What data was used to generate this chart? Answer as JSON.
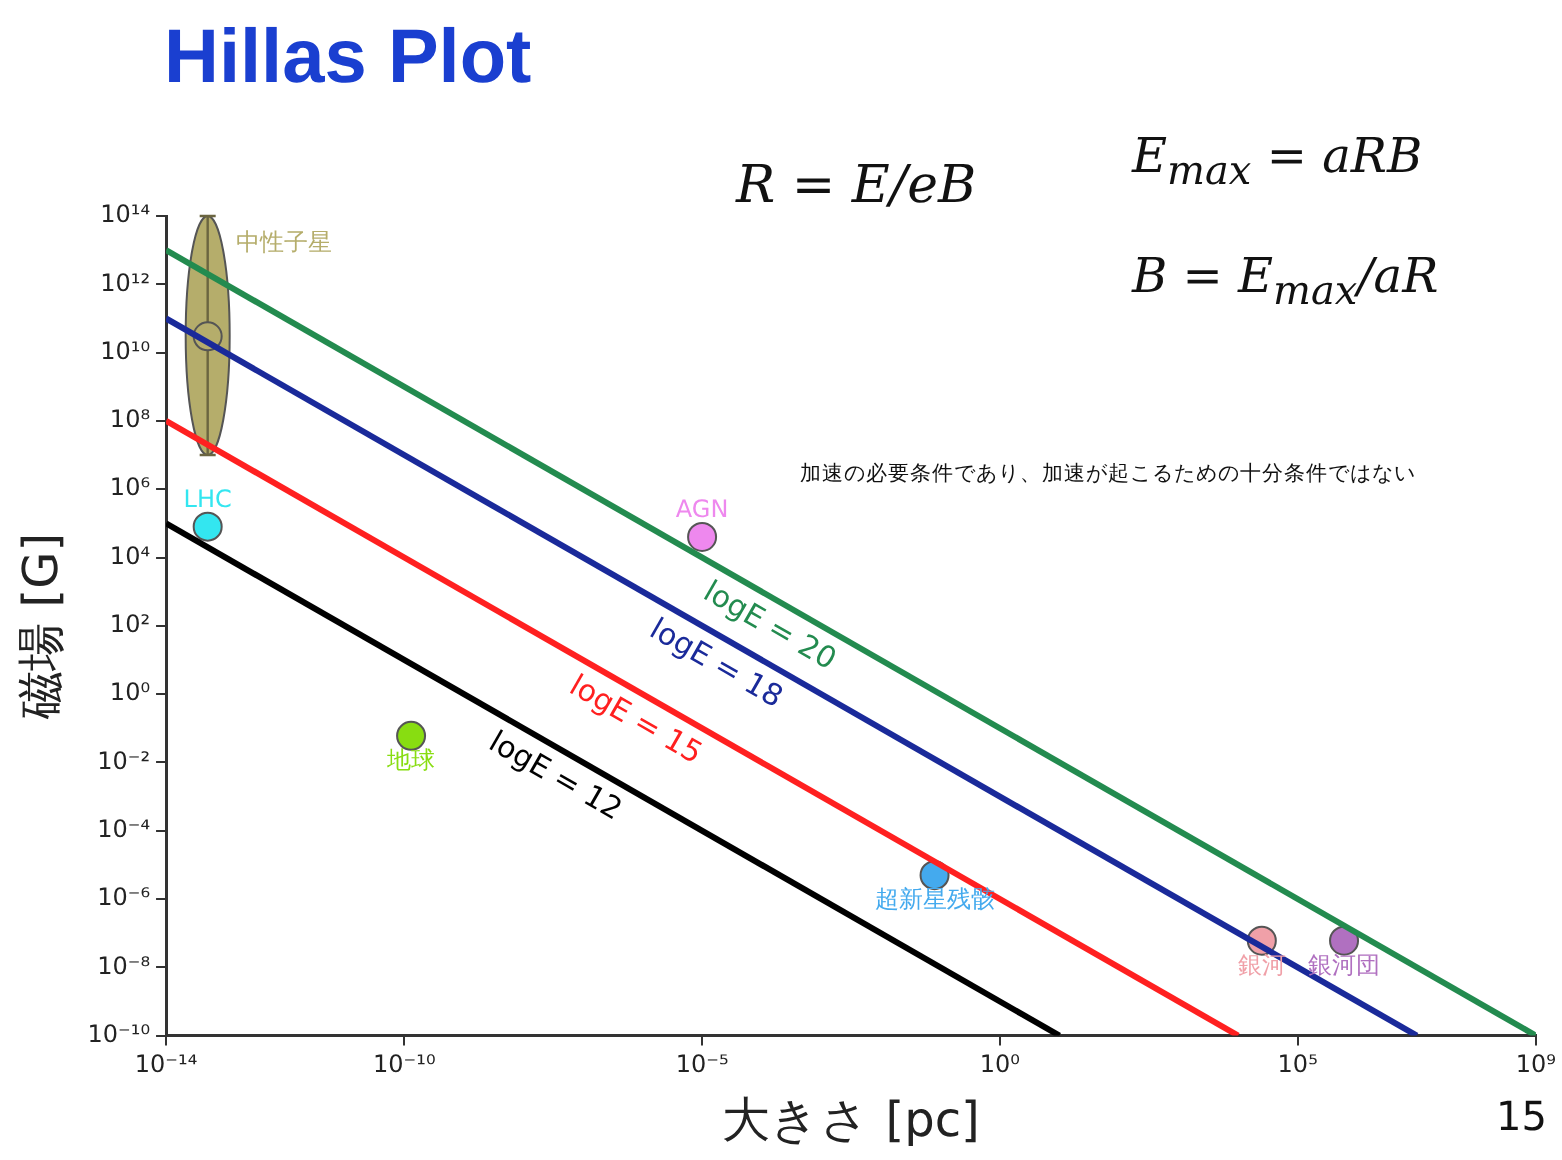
{
  "chart_data": {
    "type": "line",
    "title": "Hillas Plot",
    "xlabel": "大きさ [pc]",
    "ylabel": "磁場 [G]",
    "log": "xy",
    "grid": false,
    "legend": false,
    "line_style": "solid",
    "xlim": [
      1e-14,
      1000000000.0
    ],
    "ylim": [
      1e-10,
      100000000000000.0
    ],
    "xticks": [
      {
        "value": 1e-14,
        "label": "10⁻¹⁴"
      },
      {
        "value": 1e-10,
        "label": "10⁻¹⁰"
      },
      {
        "value": 1e-05,
        "label": "10⁻⁵"
      },
      {
        "value": 1,
        "label": "10⁰"
      },
      {
        "value": 100000.0,
        "label": "10⁵"
      },
      {
        "value": 1000000000.0,
        "label": "10⁹"
      }
    ],
    "yticks": [
      {
        "value": 1e-10,
        "label": "10⁻¹⁰"
      },
      {
        "value": 1e-08,
        "label": "10⁻⁸"
      },
      {
        "value": 1e-06,
        "label": "10⁻⁶"
      },
      {
        "value": 0.0001,
        "label": "10⁻⁴"
      },
      {
        "value": 0.01,
        "label": "10⁻²"
      },
      {
        "value": 1,
        "label": "10⁰"
      },
      {
        "value": 100,
        "label": "10²"
      },
      {
        "value": 10000.0,
        "label": "10⁴"
      },
      {
        "value": 1000000.0,
        "label": "10⁶"
      },
      {
        "value": 100000000.0,
        "label": "10⁸"
      },
      {
        "value": 10000000000.0,
        "label": "10¹⁰"
      },
      {
        "value": 1000000000000.0,
        "label": "10¹²"
      },
      {
        "value": 100000000000000.0,
        "label": "10¹⁴"
      }
    ],
    "series": [
      {
        "name": "logE = 20",
        "color": "#238b4f",
        "x": [
          1e-14,
          1000000000.0
        ],
        "values": [
          10000000000000.0,
          1e-10
        ]
      },
      {
        "name": "logE = 18",
        "color": "#1a2a9a",
        "x": [
          1e-14,
          10000000.0
        ],
        "values": [
          100000000000.0,
          1e-10
        ]
      },
      {
        "name": "logE = 15",
        "color": "#ff2020",
        "x": [
          1e-14,
          10000.0
        ],
        "values": [
          100000000.0,
          1e-10
        ]
      },
      {
        "name": "logE = 12",
        "color": "#000000",
        "x": [
          1e-14,
          10
        ],
        "values": [
          100000.0,
          1e-10
        ]
      },
      {
        "name": "中性子星",
        "type": "scatter",
        "marker": "circle",
        "color": "#b5ad6b",
        "x": [
          5e-14
        ],
        "values": [
          30000000000.0
        ],
        "errors": [
          [
            10000000.0,
            100000000000000.0
          ]
        ]
      },
      {
        "name": "LHC",
        "type": "scatter",
        "marker": "circle",
        "color": "#33e6f0",
        "x": [
          5e-14
        ],
        "values": [
          80000.0
        ]
      },
      {
        "name": "AGN",
        "type": "scatter",
        "marker": "circle",
        "color": "#ee88ee",
        "x": [
          1e-05
        ],
        "values": [
          40000.0
        ]
      },
      {
        "name": "地球",
        "type": "scatter",
        "marker": "circle",
        "color": "#88dd11",
        "x": [
          1.3e-10
        ],
        "values": [
          0.06
        ]
      },
      {
        "name": "超新星残骸",
        "type": "scatter",
        "marker": "circle",
        "color": "#44aaee",
        "x": [
          0.08
        ],
        "values": [
          5e-06
        ]
      },
      {
        "name": "銀河",
        "type": "scatter",
        "marker": "circle",
        "color": "#f0a0a8",
        "x": [
          25000.0
        ],
        "values": [
          6e-08
        ]
      },
      {
        "name": "銀河団",
        "type": "scatter",
        "marker": "circle",
        "color": "#b070c0",
        "x": [
          600000.0
        ],
        "values": [
          6e-08
        ]
      }
    ],
    "annotations": [
      "R = E/eB",
      "E$_{max}$ = aRB",
      "B = E$_{max}$/aR",
      "加速の必要条件であり、加速が起こるための十分条件ではない",
      "15"
    ]
  }
}
